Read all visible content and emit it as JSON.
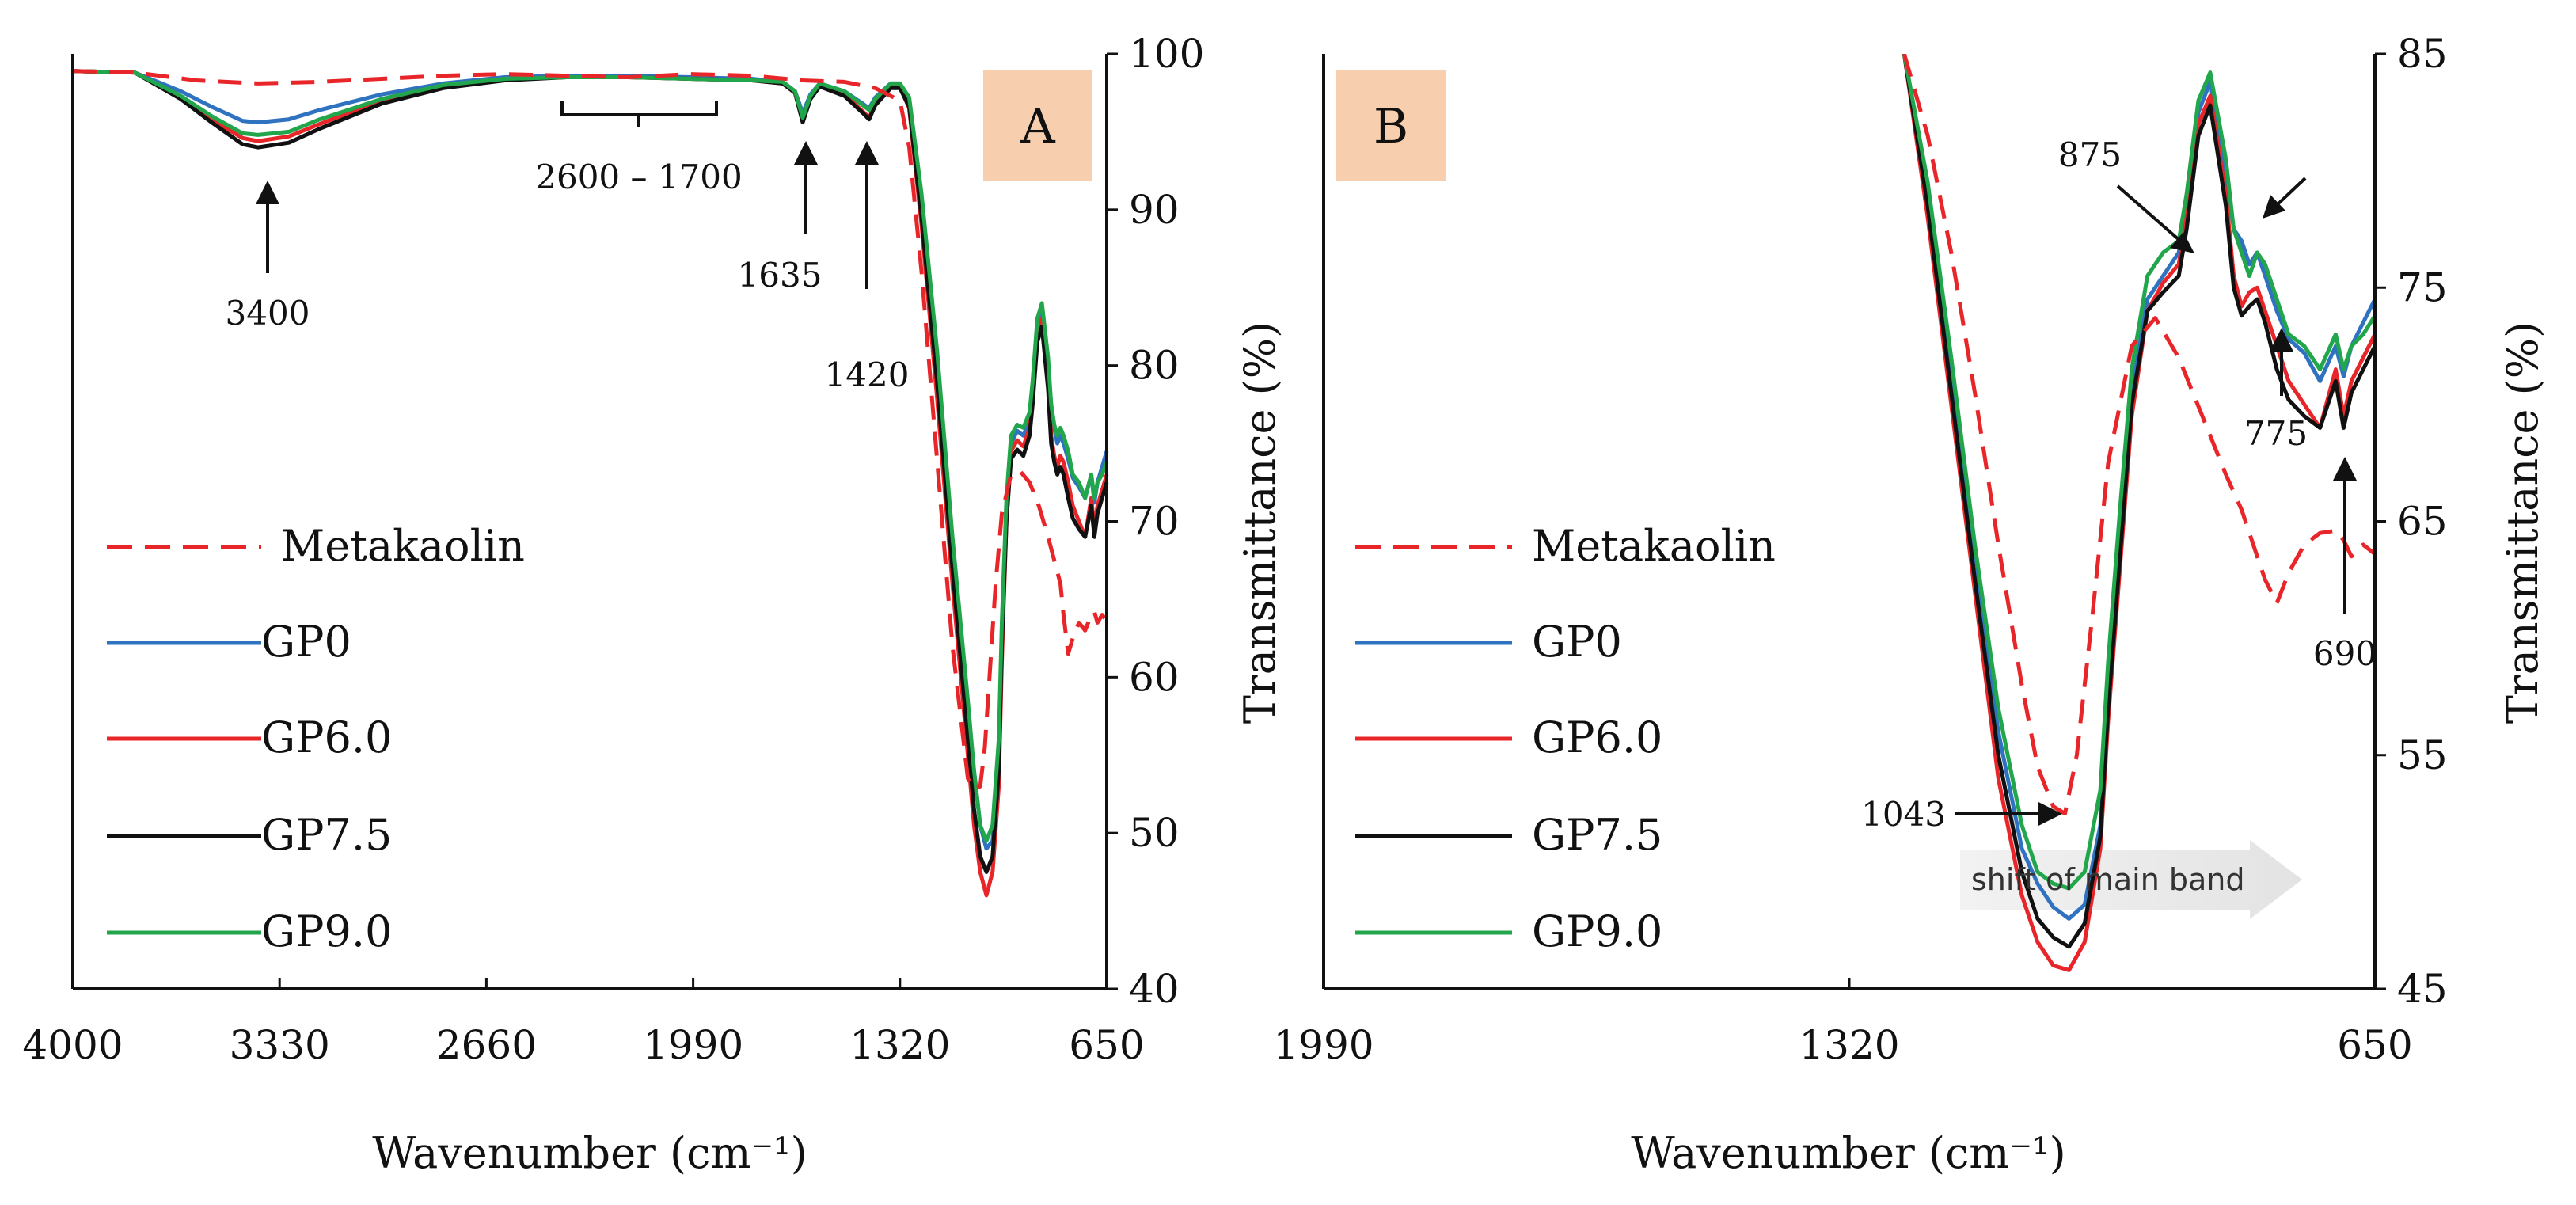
{
  "chart_data": [
    {
      "type": "line",
      "panel_label": "A",
      "xlabel": "Wavenumber (cm⁻¹)",
      "ylabel": "Transmittance (%)",
      "xlim": [
        4000,
        650
      ],
      "ylim": [
        40,
        100
      ],
      "x_ticks": [
        "4000",
        "3330",
        "2660",
        "1990",
        "1320",
        "650"
      ],
      "y_ticks": [
        "40",
        "50",
        "60",
        "70",
        "80",
        "90",
        "100"
      ],
      "legend": [
        "Metakaolin",
        "GP0",
        "GP6.0",
        "GP7.5",
        "GP9.0"
      ],
      "colors": {
        "Metakaolin": "#e8262a",
        "GP0": "#2f73c0",
        "GP6.0": "#e8262a",
        "GP7.5": "#111111",
        "GP9.0": "#22a64b"
      },
      "annotations": [
        "3400",
        "2600 – 1700",
        "1635",
        "1420"
      ],
      "series": [
        {
          "name": "Metakaolin",
          "dashed": true,
          "x": [
            4000,
            3800,
            3600,
            3400,
            3200,
            3000,
            2800,
            2600,
            2400,
            2200,
            2000,
            1800,
            1635,
            1500,
            1400,
            1320,
            1290,
            1250,
            1200,
            1150,
            1100,
            1080,
            1060,
            1045,
            1030,
            1010,
            990,
            960,
            930,
            900,
            870,
            840,
            820,
            800,
            790,
            775,
            760,
            740,
            720,
            700,
            690,
            680,
            665,
            650
          ],
          "y": [
            98.9,
            98.8,
            98.3,
            98.1,
            98.2,
            98.4,
            98.6,
            98.7,
            98.6,
            98.5,
            98.7,
            98.6,
            98.3,
            98.2,
            97.8,
            97.0,
            94.0,
            86.0,
            74.0,
            62.0,
            53.5,
            52.8,
            53.0,
            55.5,
            60.0,
            66.0,
            70.5,
            73.0,
            73.2,
            72.5,
            71.0,
            69.0,
            67.5,
            66.0,
            64.0,
            61.5,
            62.5,
            63.5,
            63.0,
            64.0,
            64.2,
            63.5,
            64.0,
            63.6
          ]
        },
        {
          "name": "GP0",
          "dashed": false,
          "x": [
            4000,
            3800,
            3650,
            3550,
            3450,
            3400,
            3300,
            3200,
            3000,
            2800,
            2600,
            2400,
            2200,
            2000,
            1800,
            1700,
            1660,
            1635,
            1610,
            1580,
            1500,
            1440,
            1420,
            1400,
            1350,
            1320,
            1290,
            1250,
            1200,
            1150,
            1100,
            1080,
            1060,
            1040,
            1020,
            1000,
            990,
            975,
            960,
            940,
            920,
            900,
            890,
            875,
            860,
            840,
            830,
            820,
            810,
            800,
            790,
            775,
            760,
            740,
            720,
            700,
            690,
            680,
            665,
            650
          ],
          "y": [
            98.9,
            98.8,
            97.6,
            96.6,
            95.7,
            95.6,
            95.8,
            96.4,
            97.4,
            98.1,
            98.5,
            98.6,
            98.6,
            98.5,
            98.4,
            98.2,
            97.6,
            96.2,
            97.4,
            98.1,
            97.6,
            96.8,
            96.5,
            97.2,
            98.1,
            98.1,
            97.0,
            90.0,
            80.0,
            68.0,
            58.0,
            54.0,
            50.5,
            49.0,
            49.5,
            55.0,
            62.0,
            70.5,
            75.0,
            75.8,
            75.5,
            76.5,
            78.5,
            82.5,
            83.5,
            80.0,
            77.5,
            76.0,
            75.0,
            75.5,
            75.0,
            74.0,
            72.8,
            72.2,
            71.5,
            73.0,
            71.2,
            72.5,
            73.5,
            74.5
          ]
        },
        {
          "name": "GP6.0",
          "dashed": false,
          "x": [
            4000,
            3800,
            3650,
            3550,
            3450,
            3400,
            3300,
            3200,
            3000,
            2800,
            2600,
            2400,
            2200,
            2000,
            1800,
            1700,
            1660,
            1635,
            1610,
            1580,
            1500,
            1440,
            1420,
            1400,
            1350,
            1320,
            1290,
            1250,
            1200,
            1150,
            1100,
            1080,
            1060,
            1040,
            1020,
            1000,
            990,
            975,
            960,
            940,
            920,
            900,
            890,
            875,
            860,
            840,
            830,
            820,
            810,
            800,
            790,
            775,
            760,
            740,
            720,
            700,
            690,
            680,
            665,
            650
          ],
          "y": [
            98.9,
            98.8,
            97.2,
            95.8,
            94.6,
            94.4,
            94.7,
            95.5,
            97.0,
            97.9,
            98.4,
            98.5,
            98.5,
            98.4,
            98.3,
            98.1,
            97.5,
            95.7,
            97.2,
            98.0,
            97.4,
            96.3,
            95.9,
            96.8,
            97.9,
            97.9,
            96.5,
            89.0,
            78.0,
            66.0,
            55.0,
            50.5,
            47.5,
            46.0,
            47.5,
            53.0,
            61.0,
            70.0,
            74.5,
            75.2,
            74.8,
            76.0,
            78.0,
            82.0,
            83.0,
            79.0,
            75.5,
            74.2,
            73.5,
            74.2,
            73.8,
            72.5,
            71.0,
            70.0,
            69.0,
            71.5,
            69.5,
            71.0,
            72.0,
            73.0
          ]
        },
        {
          "name": "GP7.5",
          "dashed": false,
          "x": [
            4000,
            3800,
            3650,
            3550,
            3450,
            3400,
            3300,
            3200,
            3000,
            2800,
            2600,
            2400,
            2200,
            2000,
            1800,
            1700,
            1660,
            1635,
            1610,
            1580,
            1500,
            1440,
            1420,
            1400,
            1350,
            1320,
            1290,
            1250,
            1200,
            1150,
            1100,
            1080,
            1060,
            1040,
            1020,
            1000,
            990,
            975,
            960,
            940,
            920,
            900,
            890,
            875,
            860,
            840,
            830,
            820,
            810,
            800,
            790,
            775,
            760,
            740,
            720,
            700,
            690,
            680,
            665,
            650
          ],
          "y": [
            98.9,
            98.8,
            97.1,
            95.6,
            94.2,
            94.0,
            94.3,
            95.2,
            96.8,
            97.8,
            98.3,
            98.5,
            98.5,
            98.4,
            98.3,
            98.1,
            97.5,
            95.6,
            97.1,
            97.9,
            97.3,
            96.2,
            95.8,
            96.7,
            97.8,
            97.8,
            96.6,
            89.5,
            79.0,
            67.0,
            56.0,
            51.5,
            48.5,
            47.5,
            48.5,
            54.0,
            62.0,
            70.0,
            74.0,
            74.6,
            74.2,
            75.5,
            77.5,
            81.5,
            82.5,
            78.5,
            75.0,
            73.8,
            73.0,
            73.5,
            73.0,
            71.5,
            70.2,
            69.5,
            69.0,
            71.0,
            69.0,
            70.5,
            71.5,
            72.5
          ]
        },
        {
          "name": "GP9.0",
          "dashed": false,
          "x": [
            4000,
            3800,
            3650,
            3550,
            3450,
            3400,
            3300,
            3200,
            3000,
            2800,
            2600,
            2400,
            2200,
            2000,
            1800,
            1700,
            1660,
            1635,
            1610,
            1580,
            1500,
            1440,
            1420,
            1400,
            1350,
            1320,
            1290,
            1250,
            1200,
            1150,
            1100,
            1080,
            1060,
            1040,
            1020,
            1000,
            990,
            975,
            960,
            940,
            920,
            900,
            890,
            875,
            860,
            840,
            830,
            820,
            810,
            800,
            790,
            775,
            760,
            740,
            720,
            700,
            690,
            680,
            665,
            650
          ],
          "y": [
            98.9,
            98.8,
            97.3,
            96.0,
            94.9,
            94.8,
            95.0,
            95.8,
            97.1,
            98.0,
            98.4,
            98.5,
            98.5,
            98.4,
            98.3,
            98.2,
            97.6,
            95.9,
            97.3,
            98.1,
            97.6,
            96.7,
            96.4,
            97.1,
            98.1,
            98.1,
            97.2,
            91.0,
            81.0,
            69.0,
            58.5,
            54.0,
            50.5,
            49.5,
            50.5,
            56.0,
            63.5,
            71.5,
            75.5,
            76.2,
            76.0,
            77.0,
            79.0,
            83.0,
            84.0,
            80.5,
            77.5,
            76.2,
            75.5,
            76.0,
            75.5,
            74.5,
            73.0,
            72.5,
            71.5,
            73.0,
            71.5,
            72.5,
            73.0,
            73.8
          ]
        }
      ]
    },
    {
      "type": "line",
      "panel_label": "B",
      "xlabel": "Wavenumber (cm⁻¹)",
      "ylabel": "Transmittance (%)",
      "xlim": [
        1990,
        650
      ],
      "ylim": [
        45,
        85
      ],
      "x_ticks": [
        "1990",
        "1320",
        "650"
      ],
      "y_ticks": [
        "45",
        "55",
        "65",
        "75",
        "85"
      ],
      "legend": [
        "Metakaolin",
        "GP0",
        "GP6.0",
        "GP7.5",
        "GP9.0"
      ],
      "annotations": [
        "875",
        "775",
        "690",
        "1043",
        "shift of main band"
      ],
      "series": [
        {
          "name": "Metakaolin",
          "dashed": true,
          "x": [
            1250,
            1220,
            1190,
            1160,
            1130,
            1100,
            1080,
            1060,
            1045,
            1030,
            1010,
            990,
            960,
            930,
            900,
            870,
            840,
            820,
            800,
            790,
            775,
            760,
            740,
            720,
            700,
            690,
            680,
            665,
            650
          ],
          "y": [
            85.0,
            81.5,
            76.5,
            70.5,
            64.0,
            58.0,
            54.5,
            52.8,
            52.5,
            55.0,
            61.0,
            67.5,
            72.5,
            73.7,
            72.0,
            69.5,
            67.0,
            65.5,
            63.5,
            62.5,
            61.5,
            62.8,
            64.0,
            64.5,
            64.6,
            64.2,
            63.5,
            64.0,
            63.6
          ]
        },
        {
          "name": "GP0",
          "dashed": false,
          "x": [
            1250,
            1220,
            1190,
            1160,
            1130,
            1100,
            1080,
            1060,
            1040,
            1020,
            1000,
            990,
            975,
            960,
            940,
            920,
            900,
            890,
            875,
            860,
            840,
            830,
            820,
            810,
            800,
            790,
            775,
            760,
            740,
            720,
            700,
            690,
            680,
            665,
            650
          ],
          "y": [
            85.0,
            79.0,
            71.0,
            63.0,
            56.0,
            51.0,
            49.5,
            48.5,
            48.0,
            48.6,
            52.0,
            57.5,
            64.0,
            70.5,
            74.5,
            75.5,
            76.5,
            78.5,
            82.5,
            83.8,
            80.0,
            77.5,
            77.0,
            76.0,
            76.5,
            75.5,
            74.0,
            72.8,
            72.2,
            71.0,
            72.5,
            71.2,
            72.5,
            73.5,
            74.5
          ]
        },
        {
          "name": "GP6.0",
          "dashed": false,
          "x": [
            1250,
            1220,
            1190,
            1160,
            1130,
            1100,
            1080,
            1060,
            1040,
            1020,
            1000,
            990,
            975,
            960,
            940,
            920,
            900,
            890,
            875,
            860,
            840,
            830,
            820,
            810,
            800,
            790,
            775,
            760,
            740,
            720,
            700,
            690,
            680,
            665,
            650
          ],
          "y": [
            85.0,
            78.0,
            70.0,
            62.0,
            54.0,
            49.0,
            47.0,
            46.0,
            45.8,
            47.0,
            51.0,
            56.5,
            63.0,
            69.5,
            74.0,
            75.2,
            76.0,
            78.0,
            82.0,
            83.2,
            79.0,
            75.5,
            74.2,
            74.8,
            75.0,
            74.0,
            72.5,
            71.0,
            70.0,
            69.0,
            71.5,
            69.5,
            71.0,
            72.0,
            73.0
          ]
        },
        {
          "name": "GP7.5",
          "dashed": false,
          "x": [
            1250,
            1220,
            1190,
            1160,
            1130,
            1100,
            1080,
            1060,
            1040,
            1020,
            1000,
            990,
            975,
            960,
            940,
            920,
            900,
            890,
            875,
            860,
            840,
            830,
            820,
            810,
            800,
            790,
            775,
            760,
            740,
            720,
            700,
            690,
            680,
            665,
            650
          ],
          "y": [
            85.0,
            78.5,
            70.5,
            62.5,
            55.0,
            50.0,
            48.0,
            47.2,
            46.8,
            47.8,
            51.5,
            57.0,
            63.5,
            70.0,
            74.0,
            74.8,
            75.5,
            77.5,
            81.5,
            82.8,
            78.5,
            75.0,
            73.8,
            74.2,
            74.5,
            73.5,
            71.5,
            70.2,
            69.5,
            69.0,
            71.0,
            69.0,
            70.5,
            71.5,
            72.5
          ]
        },
        {
          "name": "GP9.0",
          "dashed": false,
          "x": [
            1250,
            1220,
            1190,
            1160,
            1130,
            1100,
            1080,
            1060,
            1040,
            1020,
            1000,
            990,
            975,
            960,
            940,
            920,
            900,
            890,
            875,
            860,
            840,
            830,
            820,
            810,
            800,
            790,
            775,
            760,
            740,
            720,
            700,
            690,
            680,
            665,
            650
          ],
          "y": [
            85.0,
            79.5,
            72.0,
            64.0,
            57.0,
            52.0,
            50.0,
            49.5,
            49.3,
            50.0,
            53.5,
            59.0,
            65.5,
            71.5,
            75.5,
            76.5,
            77.0,
            79.0,
            83.0,
            84.2,
            80.5,
            77.5,
            76.5,
            75.5,
            76.5,
            76.0,
            74.5,
            73.0,
            72.5,
            71.5,
            73.0,
            71.5,
            72.5,
            73.0,
            73.8
          ]
        }
      ]
    }
  ]
}
